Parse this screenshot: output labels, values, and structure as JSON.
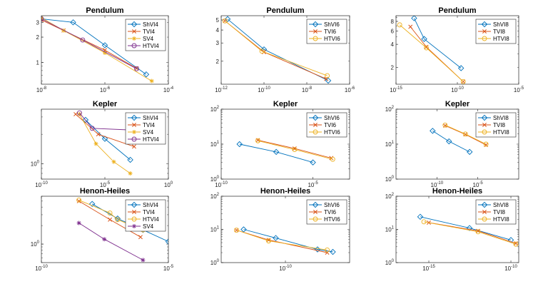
{
  "colors": {
    "blue": "#0072BD",
    "orange": "#D95319",
    "yellow": "#EDB120",
    "purple": "#7E2F8E"
  },
  "chart_data": [
    {
      "type": "line",
      "title": "Pendulum",
      "xscale": "log",
      "yscale": "log",
      "xlim": [
        1e-08,
        0.0001
      ],
      "ylim": [
        0.55,
        3.6
      ],
      "xticks": [
        {
          "v": 1e-08,
          "e": "-8"
        },
        {
          "v": 1e-06,
          "e": "-6"
        },
        {
          "v": 0.0001,
          "e": "-4"
        }
      ],
      "yticks": [
        {
          "v": 1,
          "label": "1"
        },
        {
          "v": 2,
          "label": "2"
        },
        {
          "v": 3,
          "label": "3"
        }
      ],
      "legend": "top-right",
      "series": [
        {
          "name": "ShVI4",
          "color": "blue",
          "marker": "diamond",
          "x": [
            1e-08,
            1e-07,
            1e-06,
            2e-05
          ],
          "y": [
            3.3,
            3.0,
            1.6,
            0.72
          ]
        },
        {
          "name": "TVI4",
          "color": "orange",
          "marker": "x",
          "x": [
            1e-08,
            5e-08,
            1e-06,
            1e-05
          ],
          "y": [
            3.2,
            2.4,
            1.4,
            0.85
          ]
        },
        {
          "name": "SV4",
          "color": "yellow",
          "marker": "star",
          "x": [
            1e-08,
            5e-08,
            1e-06,
            3e-05
          ],
          "y": [
            3.4,
            2.4,
            1.3,
            0.6
          ]
        },
        {
          "name": "HTVI4",
          "color": "purple",
          "marker": "circle",
          "x": [
            1e-08,
            2e-07,
            1e-05
          ],
          "y": [
            3.3,
            1.85,
            0.84
          ]
        }
      ]
    },
    {
      "type": "line",
      "title": "Pendulum",
      "xscale": "log",
      "yscale": "log",
      "xlim": [
        1e-12,
        1e-06
      ],
      "ylim": [
        1.2,
        5.5
      ],
      "xticks": [
        {
          "v": 1e-12,
          "e": "-12"
        },
        {
          "v": 1e-10,
          "e": "-10"
        },
        {
          "v": 1e-08,
          "e": "-8"
        },
        {
          "v": 1e-06,
          "e": "-6"
        }
      ],
      "yticks": [
        {
          "v": 2,
          "label": "2"
        },
        {
          "v": 3,
          "label": "3"
        },
        {
          "v": 4,
          "label": "4"
        },
        {
          "v": 5,
          "label": "5"
        }
      ],
      "legend": "top-right",
      "series": [
        {
          "name": "ShVI6",
          "color": "blue",
          "marker": "diamond",
          "x": [
            2e-12,
            1e-10,
            1e-07
          ],
          "y": [
            5.1,
            2.6,
            1.3
          ]
        },
        {
          "name": "TVI6",
          "color": "orange",
          "marker": "x",
          "x": [
            1.5e-12,
            1e-10,
            8e-08
          ],
          "y": [
            4.9,
            2.45,
            1.35
          ]
        },
        {
          "name": "HTVI6",
          "color": "yellow",
          "marker": "circle",
          "x": [
            1.5e-12,
            8e-11,
            9e-08
          ],
          "y": [
            4.9,
            2.5,
            1.45
          ]
        }
      ]
    },
    {
      "type": "line",
      "title": "Pendulum",
      "xscale": "log",
      "yscale": "log",
      "xlim": [
        1e-15,
        1e-05
      ],
      "ylim": [
        1.2,
        9.5
      ],
      "xticks": [
        {
          "v": 1e-15,
          "e": "-15"
        },
        {
          "v": 1e-10,
          "e": "-10"
        },
        {
          "v": 1e-05,
          "e": "-5"
        }
      ],
      "yticks": [
        {
          "v": 2,
          "label": "2"
        },
        {
          "v": 4,
          "label": "4"
        },
        {
          "v": 6,
          "label": "6"
        },
        {
          "v": 8,
          "label": "8"
        }
      ],
      "legend": "top-right",
      "series": [
        {
          "name": "ShVI8",
          "color": "blue",
          "marker": "diamond",
          "x": [
            3e-14,
            2e-13,
            2e-10
          ],
          "y": [
            8.8,
            4.7,
            1.95
          ]
        },
        {
          "name": "TVI8",
          "color": "orange",
          "marker": "x",
          "x": [
            1.5e-14,
            3e-13,
            3e-10
          ],
          "y": [
            6.8,
            3.7,
            1.3
          ]
        },
        {
          "name": "HTVI8",
          "color": "yellow",
          "marker": "circle",
          "x": [
            2e-15,
            3e-13,
            3e-10
          ],
          "y": [
            7.2,
            3.6,
            1.3
          ]
        }
      ]
    },
    {
      "type": "line",
      "title": "Kepler",
      "xscale": "log",
      "yscale": "log",
      "xlim": [
        1e-10,
        1
      ],
      "ylim": [
        0.7,
        3.6
      ],
      "xticks": [
        {
          "v": 1e-10,
          "e": "-10"
        },
        {
          "v": 1e-05,
          "e": "-5"
        },
        {
          "v": 1,
          "e": "0"
        }
      ],
      "yticks": [
        {
          "v": 1,
          "base": "10",
          "e": "0"
        }
      ],
      "legend": "top-right",
      "series": [
        {
          "name": "ShVI4",
          "color": "blue",
          "marker": "diamond",
          "x": [
            3e-07,
            1e-05,
            0.001
          ],
          "y": [
            2.8,
            1.8,
            1.1
          ]
        },
        {
          "name": "TVI4",
          "color": "orange",
          "marker": "x",
          "x": [
            5e-08,
            3e-06,
            0.002
          ],
          "y": [
            3.2,
            2.0,
            1.5
          ]
        },
        {
          "name": "SV4",
          "color": "yellow",
          "marker": "star",
          "x": [
            1e-07,
            2e-06,
            5e-05,
            0.001
          ],
          "y": [
            3.2,
            1.6,
            1.05,
            0.8
          ]
        },
        {
          "name": "HTVI4",
          "color": "purple",
          "marker": "circle",
          "x": [
            1e-07,
            1e-06,
            0.003
          ],
          "y": [
            3.3,
            2.3,
            2.2
          ]
        }
      ]
    },
    {
      "type": "line",
      "title": "Kepler",
      "xscale": "log",
      "yscale": "log",
      "xlim": [
        1e-10,
        0.001
      ],
      "ylim": [
        1,
        100
      ],
      "xticks": [
        {
          "v": 1e-10,
          "e": "-10"
        },
        {
          "v": 1e-05,
          "e": "-5"
        }
      ],
      "yticks": [
        {
          "v": 1,
          "base": "10",
          "e": "0"
        },
        {
          "v": 10,
          "base": "10",
          "e": "1"
        },
        {
          "v": 100,
          "base": "10",
          "e": "2"
        }
      ],
      "legend": "top-right",
      "series": [
        {
          "name": "ShVI6",
          "color": "blue",
          "marker": "diamond",
          "x": [
            1e-09,
            1e-07,
            1e-05
          ],
          "y": [
            10,
            6,
            3
          ]
        },
        {
          "name": "TVI6",
          "color": "orange",
          "marker": "x",
          "x": [
            1e-08,
            1e-06,
            0.0001
          ],
          "y": [
            13,
            7.5,
            4
          ]
        },
        {
          "name": "HTVI6",
          "color": "yellow",
          "marker": "circle",
          "x": [
            1e-08,
            1e-06,
            0.00012
          ],
          "y": [
            12.5,
            7,
            3.7
          ]
        }
      ]
    },
    {
      "type": "line",
      "title": "Kepler",
      "xscale": "log",
      "yscale": "log",
      "xlim": [
        1e-15,
        1
      ],
      "ylim": [
        1,
        100
      ],
      "xticks": [
        {
          "v": 1e-10,
          "e": "-10"
        },
        {
          "v": 1e-05,
          "e": "-5"
        }
      ],
      "yticks": [
        {
          "v": 1,
          "base": "10",
          "e": "0"
        },
        {
          "v": 10,
          "base": "10",
          "e": "1"
        },
        {
          "v": 100,
          "base": "10",
          "e": "2"
        }
      ],
      "legend": "top-right",
      "series": [
        {
          "name": "ShVI8",
          "color": "blue",
          "marker": "diamond",
          "x": [
            3e-11,
            3e-09,
            1e-06
          ],
          "y": [
            24,
            12,
            6
          ]
        },
        {
          "name": "TVI8",
          "color": "orange",
          "marker": "x",
          "x": [
            1e-09,
            3e-07,
            0.0001
          ],
          "y": [
            34,
            19,
            9.5
          ]
        },
        {
          "name": "HTVI8",
          "color": "yellow",
          "marker": "circle",
          "x": [
            1e-09,
            3e-07,
            0.0001
          ],
          "y": [
            35,
            19.5,
            10
          ]
        }
      ]
    },
    {
      "type": "line",
      "title": "Henon-Heiles",
      "xscale": "log",
      "yscale": "log",
      "xlim": [
        1e-10,
        1e-05
      ],
      "ylim": [
        0.5,
        6
      ],
      "xticks": [
        {
          "v": 1e-10,
          "e": "-10"
        },
        {
          "v": 1e-05,
          "e": "-5"
        }
      ],
      "yticks": [
        {
          "v": 1,
          "base": "10",
          "e": "0"
        }
      ],
      "legend": "top-right",
      "series": [
        {
          "name": "ShVI4",
          "color": "blue",
          "marker": "diamond",
          "x": [
            1e-08,
            1e-07,
            1e-06,
            1e-05
          ],
          "y": [
            4.5,
            2.6,
            1.7,
            1.1
          ]
        },
        {
          "name": "TVI4",
          "color": "orange",
          "marker": "x",
          "x": [
            3e-09,
            5e-08,
            8e-07
          ],
          "y": [
            5,
            2.5,
            1.3
          ]
        },
        {
          "name": "HTVI4",
          "color": "yellow",
          "marker": "circle",
          "x": [
            3e-09,
            5e-08,
            1e-07,
            1e-06
          ],
          "y": [
            5.2,
            3.2,
            2.5,
            1.7
          ]
        },
        {
          "name": "SV4",
          "color": "purple",
          "marker": "star",
          "x": [
            3e-09,
            3e-08,
            1e-06
          ],
          "y": [
            2.2,
            1.2,
            0.55
          ]
        }
      ]
    },
    {
      "type": "line",
      "title": "Henon-Heiles",
      "xscale": "log",
      "yscale": "log",
      "xlim": [
        1e-12,
        1e-08
      ],
      "ylim": [
        1,
        100
      ],
      "xticks": [
        {
          "v": 1e-10,
          "e": "-10"
        }
      ],
      "yticks": [
        {
          "v": 1,
          "base": "10",
          "e": "0"
        },
        {
          "v": 10,
          "base": "10",
          "e": "1"
        },
        {
          "v": 100,
          "base": "10",
          "e": "2"
        }
      ],
      "legend": "top-right",
      "series": [
        {
          "name": "ShVI6",
          "color": "blue",
          "marker": "diamond",
          "x": [
            5e-12,
            5e-11,
            1e-09,
            3e-09
          ],
          "y": [
            10,
            5.5,
            2.5,
            2.1
          ]
        },
        {
          "name": "TVI6",
          "color": "orange",
          "marker": "x",
          "x": [
            3e-12,
            3e-11,
            2e-09
          ],
          "y": [
            9.5,
            4.8,
            2
          ]
        },
        {
          "name": "HTVI6",
          "color": "yellow",
          "marker": "circle",
          "x": [
            3e-12,
            3e-11,
            2e-09
          ],
          "y": [
            9.5,
            4.5,
            2.4
          ]
        }
      ]
    },
    {
      "type": "line",
      "title": "Henon-Heiles",
      "xscale": "log",
      "yscale": "log",
      "xlim": [
        1e-17,
        3e-10
      ],
      "ylim": [
        1,
        100
      ],
      "xticks": [
        {
          "v": 1e-15,
          "e": "-15"
        },
        {
          "v": 1e-10,
          "e": "-10"
        }
      ],
      "yticks": [
        {
          "v": 1,
          "base": "10",
          "e": "0"
        },
        {
          "v": 10,
          "base": "10",
          "e": "1"
        },
        {
          "v": 100,
          "base": "10",
          "e": "2"
        }
      ],
      "legend": "top-right",
      "series": [
        {
          "name": "ShVI8",
          "color": "blue",
          "marker": "diamond",
          "x": [
            3e-16,
            3e-13,
            1e-10
          ],
          "y": [
            24,
            11,
            4.8
          ]
        },
        {
          "name": "TVI8",
          "color": "orange",
          "marker": "x",
          "x": [
            1e-15,
            1e-12,
            2e-10
          ],
          "y": [
            16,
            9,
            3.8
          ]
        },
        {
          "name": "HTVI8",
          "color": "yellow",
          "marker": "circle",
          "x": [
            5e-16,
            1e-12,
            2e-10
          ],
          "y": [
            17,
            8.5,
            3.6
          ]
        }
      ]
    }
  ]
}
